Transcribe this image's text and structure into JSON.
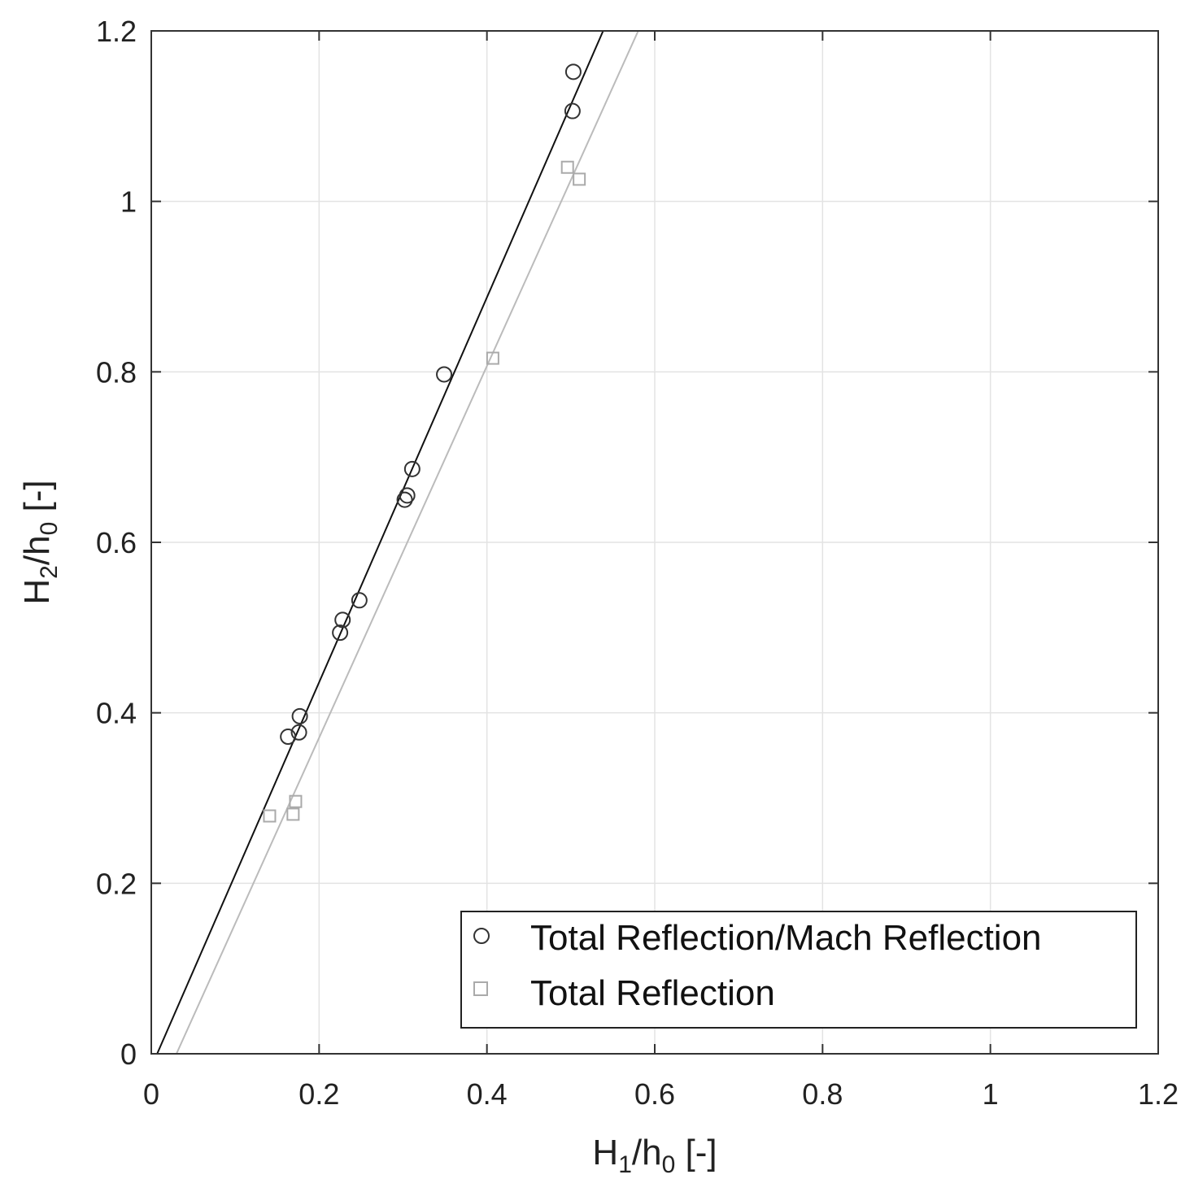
{
  "chart_data": {
    "type": "scatter",
    "title": "",
    "xlabel": {
      "pre": "H",
      "sub1": "1",
      "mid": "/h",
      "sub2": "0",
      "post": " [-]"
    },
    "ylabel": {
      "pre": "H",
      "sub1": "2",
      "mid": "/h",
      "sub2": "0",
      "post": " [-]"
    },
    "xlim": [
      0,
      1.2
    ],
    "ylim": [
      0,
      1.2
    ],
    "xticks": [
      0,
      0.2,
      0.4,
      0.6,
      0.8,
      1,
      1.2
    ],
    "yticks": [
      0,
      0.2,
      0.4,
      0.6,
      0.8,
      1,
      1.2
    ],
    "xtick_labels": [
      "0",
      "0.2",
      "0.4",
      "0.6",
      "0.8",
      "1",
      "1.2"
    ],
    "ytick_labels": [
      "0",
      "0.2",
      "0.4",
      "0.6",
      "0.8",
      "1",
      "1.2"
    ],
    "grid": true,
    "legend_position": "bottom-right",
    "series": [
      {
        "name": "Total Reflection/Mach Reflection",
        "marker": "circle",
        "color": "#333333",
        "x": [
          0.163,
          0.176,
          0.177,
          0.225,
          0.228,
          0.248,
          0.302,
          0.305,
          0.311,
          0.349,
          0.502,
          0.503
        ],
        "y": [
          0.372,
          0.377,
          0.396,
          0.494,
          0.509,
          0.532,
          0.65,
          0.655,
          0.686,
          0.797,
          1.106,
          1.152
        ],
        "fit": {
          "x": [
            0.007,
            0.55
          ],
          "y": [
            0.0,
            1.226
          ],
          "color": "#111111"
        }
      },
      {
        "name": "Total Reflection",
        "marker": "square",
        "color": "#aaaaaa",
        "x": [
          0.141,
          0.169,
          0.172,
          0.407,
          0.496,
          0.51
        ],
        "y": [
          0.279,
          0.281,
          0.296,
          0.816,
          1.04,
          1.026
        ],
        "fit": {
          "x": [
            0.03,
            0.6
          ],
          "y": [
            0.0,
            1.243
          ],
          "color": "#bbbbbb"
        }
      }
    ]
  }
}
